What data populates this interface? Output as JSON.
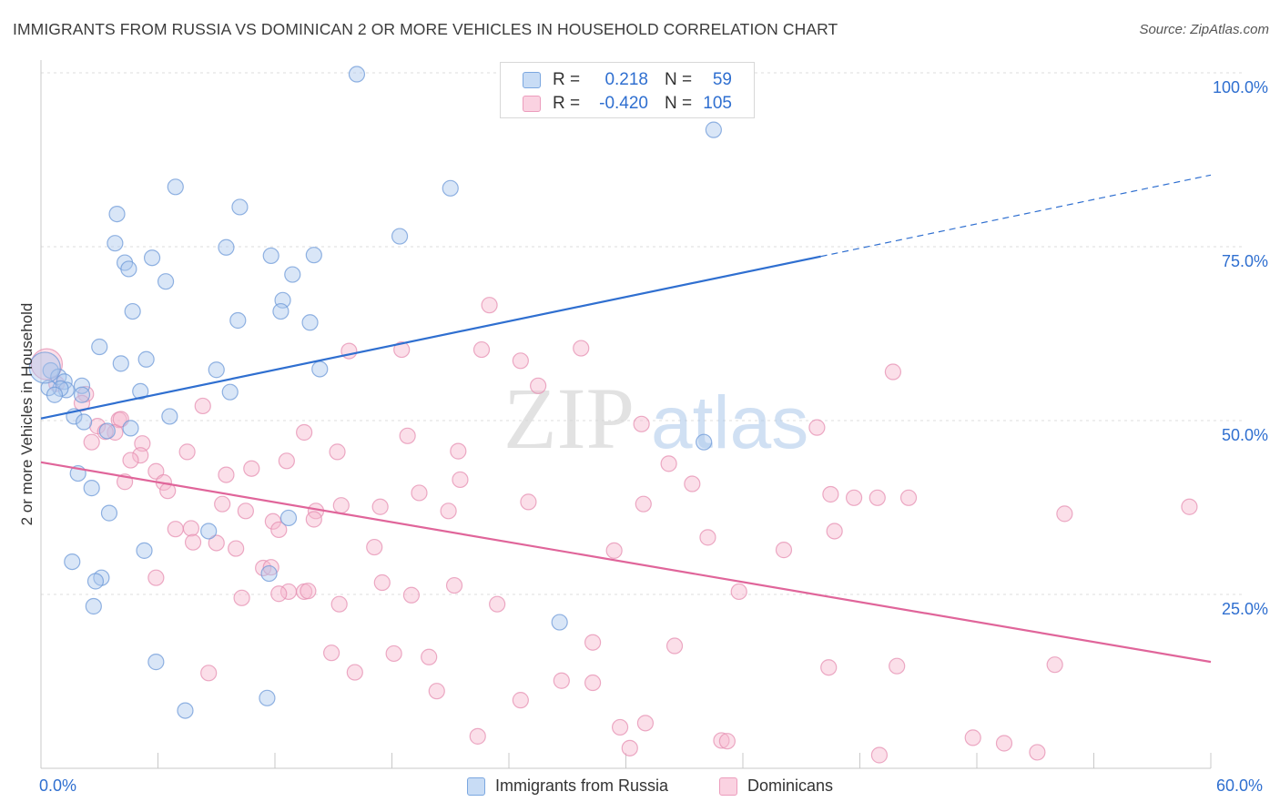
{
  "title": "IMMIGRANTS FROM RUSSIA VS DOMINICAN 2 OR MORE VEHICLES IN HOUSEHOLD CORRELATION CHART",
  "source": "Source: ZipAtlas.com",
  "watermark": {
    "part1": "ZIP",
    "part2": "atlas"
  },
  "colors": {
    "blue": "#2f6fd0",
    "blue_fill": "#aac8ee",
    "pink": "#e0659a",
    "pink_fill": "#f6b8cf",
    "grid": "#dcdcdc",
    "axis_text": "#2f6fd0"
  },
  "stats": [
    {
      "r_label": "R =",
      "r_value": "0.218",
      "n_label": "N =",
      "n_value": "59",
      "color": "blue"
    },
    {
      "r_label": "R =",
      "r_value": "-0.420",
      "n_label": "N =",
      "n_value": "105",
      "color": "pink"
    }
  ],
  "legend": [
    {
      "label": "Immigrants from Russia",
      "color": "blue"
    },
    {
      "label": "Dominicans",
      "color": "pink"
    }
  ],
  "chart_data": {
    "type": "scatter",
    "title": "IMMIGRANTS FROM RUSSIA VS DOMINICAN 2 OR MORE VEHICLES IN HOUSEHOLD CORRELATION CHART",
    "xlabel": "",
    "ylabel": "2 or more Vehicles in Household",
    "xlim": [
      0,
      60
    ],
    "ylim": [
      0,
      100
    ],
    "x_tick_labels": [
      "0.0%",
      "60.0%"
    ],
    "y_ticks": [
      25,
      50,
      75,
      100
    ],
    "y_tick_labels": [
      "25.0%",
      "50.0%",
      "75.0%",
      "100.0%"
    ],
    "grid": true,
    "series": [
      {
        "name": "Immigrants from Russia",
        "color": "blue",
        "trend": {
          "x0": 0,
          "y0": 50.3,
          "x1": 40,
          "y1": 73.6,
          "dash_to_x": 60,
          "dash_to_y": 85.3
        },
        "points": [
          [
            16.2,
            99.8
          ],
          [
            34.5,
            91.8
          ],
          [
            6.9,
            83.6
          ],
          [
            10.2,
            80.7
          ],
          [
            21.0,
            83.4
          ],
          [
            3.9,
            79.7
          ],
          [
            18.4,
            76.5
          ],
          [
            3.8,
            75.5
          ],
          [
            9.5,
            74.9
          ],
          [
            14.0,
            73.8
          ],
          [
            11.8,
            73.7
          ],
          [
            5.7,
            73.4
          ],
          [
            4.3,
            72.7
          ],
          [
            4.5,
            71.8
          ],
          [
            12.9,
            71.0
          ],
          [
            6.4,
            70.0
          ],
          [
            12.4,
            67.3
          ],
          [
            12.3,
            65.7
          ],
          [
            4.7,
            65.7
          ],
          [
            10.1,
            64.4
          ],
          [
            13.8,
            64.1
          ],
          [
            3.0,
            60.6
          ],
          [
            4.1,
            58.2
          ],
          [
            5.4,
            58.8
          ],
          [
            9.0,
            57.3
          ],
          [
            14.3,
            57.4
          ],
          [
            0.5,
            57.2
          ],
          [
            0.9,
            56.3
          ],
          [
            1.2,
            55.6
          ],
          [
            2.1,
            55.0
          ],
          [
            1.3,
            54.4
          ],
          [
            1.0,
            54.6
          ],
          [
            0.4,
            54.7
          ],
          [
            0.7,
            53.7
          ],
          [
            2.1,
            53.7
          ],
          [
            5.1,
            54.2
          ],
          [
            9.7,
            54.1
          ],
          [
            6.6,
            50.6
          ],
          [
            1.7,
            50.6
          ],
          [
            2.2,
            49.8
          ],
          [
            3.4,
            48.5
          ],
          [
            4.6,
            48.9
          ],
          [
            34.0,
            46.9
          ],
          [
            1.9,
            42.4
          ],
          [
            2.6,
            40.3
          ],
          [
            3.5,
            36.7
          ],
          [
            12.7,
            36.0
          ],
          [
            8.6,
            34.1
          ],
          [
            5.3,
            31.3
          ],
          [
            1.6,
            29.7
          ],
          [
            3.1,
            27.4
          ],
          [
            2.8,
            26.9
          ],
          [
            11.7,
            28.0
          ],
          [
            2.7,
            23.3
          ],
          [
            26.6,
            21.0
          ],
          [
            5.9,
            15.3
          ],
          [
            11.6,
            10.1
          ],
          [
            7.4,
            8.3
          ],
          [
            0.2,
            57.6
          ]
        ]
      },
      {
        "name": "Dominicans",
        "color": "pink",
        "trend": {
          "x0": 0,
          "y0": 44.0,
          "x1": 60,
          "y1": 15.3
        },
        "points": [
          [
            0.3,
            58.1
          ],
          [
            23.0,
            66.6
          ],
          [
            15.8,
            60.0
          ],
          [
            18.5,
            60.2
          ],
          [
            22.6,
            60.2
          ],
          [
            27.7,
            60.4
          ],
          [
            24.6,
            58.6
          ],
          [
            43.7,
            57.0
          ],
          [
            25.5,
            55.0
          ],
          [
            0.8,
            55.3
          ],
          [
            2.3,
            53.8
          ],
          [
            2.1,
            52.5
          ],
          [
            8.3,
            52.1
          ],
          [
            4.0,
            50.1
          ],
          [
            2.9,
            49.2
          ],
          [
            3.8,
            48.3
          ],
          [
            30.8,
            49.5
          ],
          [
            39.8,
            49.0
          ],
          [
            13.5,
            48.3
          ],
          [
            18.8,
            47.8
          ],
          [
            3.3,
            48.4
          ],
          [
            2.6,
            46.9
          ],
          [
            5.2,
            46.7
          ],
          [
            7.5,
            45.5
          ],
          [
            15.2,
            45.5
          ],
          [
            21.4,
            45.6
          ],
          [
            5.1,
            45.0
          ],
          [
            4.6,
            44.3
          ],
          [
            12.6,
            44.2
          ],
          [
            32.2,
            43.8
          ],
          [
            10.8,
            43.1
          ],
          [
            5.9,
            42.7
          ],
          [
            9.5,
            42.2
          ],
          [
            21.5,
            41.5
          ],
          [
            4.3,
            41.2
          ],
          [
            6.3,
            41.1
          ],
          [
            6.5,
            39.9
          ],
          [
            33.4,
            40.9
          ],
          [
            19.4,
            39.6
          ],
          [
            40.5,
            39.4
          ],
          [
            41.7,
            38.9
          ],
          [
            42.9,
            38.9
          ],
          [
            44.5,
            38.9
          ],
          [
            9.3,
            38.0
          ],
          [
            15.4,
            37.8
          ],
          [
            17.4,
            37.6
          ],
          [
            25.0,
            38.3
          ],
          [
            30.9,
            38.0
          ],
          [
            10.5,
            37.0
          ],
          [
            14.1,
            37.0
          ],
          [
            20.9,
            37.0
          ],
          [
            14.0,
            35.8
          ],
          [
            52.5,
            36.6
          ],
          [
            58.9,
            37.6
          ],
          [
            11.9,
            35.5
          ],
          [
            6.9,
            34.4
          ],
          [
            7.7,
            34.5
          ],
          [
            12.2,
            34.3
          ],
          [
            40.7,
            34.1
          ],
          [
            7.8,
            32.5
          ],
          [
            9.0,
            32.4
          ],
          [
            34.2,
            33.2
          ],
          [
            17.1,
            31.8
          ],
          [
            10.0,
            31.6
          ],
          [
            29.4,
            31.3
          ],
          [
            38.1,
            31.4
          ],
          [
            11.4,
            28.8
          ],
          [
            11.8,
            28.9
          ],
          [
            5.9,
            27.4
          ],
          [
            17.5,
            26.7
          ],
          [
            21.2,
            26.3
          ],
          [
            12.7,
            25.4
          ],
          [
            13.5,
            25.4
          ],
          [
            19.0,
            24.9
          ],
          [
            35.8,
            25.4
          ],
          [
            10.3,
            24.5
          ],
          [
            15.3,
            23.6
          ],
          [
            23.4,
            23.6
          ],
          [
            28.3,
            18.1
          ],
          [
            32.5,
            17.6
          ],
          [
            14.9,
            16.6
          ],
          [
            18.1,
            16.5
          ],
          [
            19.9,
            16.0
          ],
          [
            40.4,
            14.5
          ],
          [
            43.9,
            14.7
          ],
          [
            52.0,
            14.9
          ],
          [
            8.6,
            13.7
          ],
          [
            16.1,
            13.8
          ],
          [
            26.7,
            12.6
          ],
          [
            28.3,
            12.3
          ],
          [
            20.3,
            11.1
          ],
          [
            24.6,
            9.8
          ],
          [
            31.0,
            6.5
          ],
          [
            29.7,
            5.9
          ],
          [
            22.4,
            4.6
          ],
          [
            34.9,
            4.0
          ],
          [
            35.2,
            3.9
          ],
          [
            47.8,
            4.4
          ],
          [
            49.4,
            3.6
          ],
          [
            30.2,
            2.9
          ],
          [
            43.0,
            1.9
          ],
          [
            51.1,
            2.3
          ],
          [
            4.1,
            50.2
          ],
          [
            13.7,
            25.5
          ],
          [
            12.2,
            25.1
          ]
        ]
      }
    ]
  }
}
